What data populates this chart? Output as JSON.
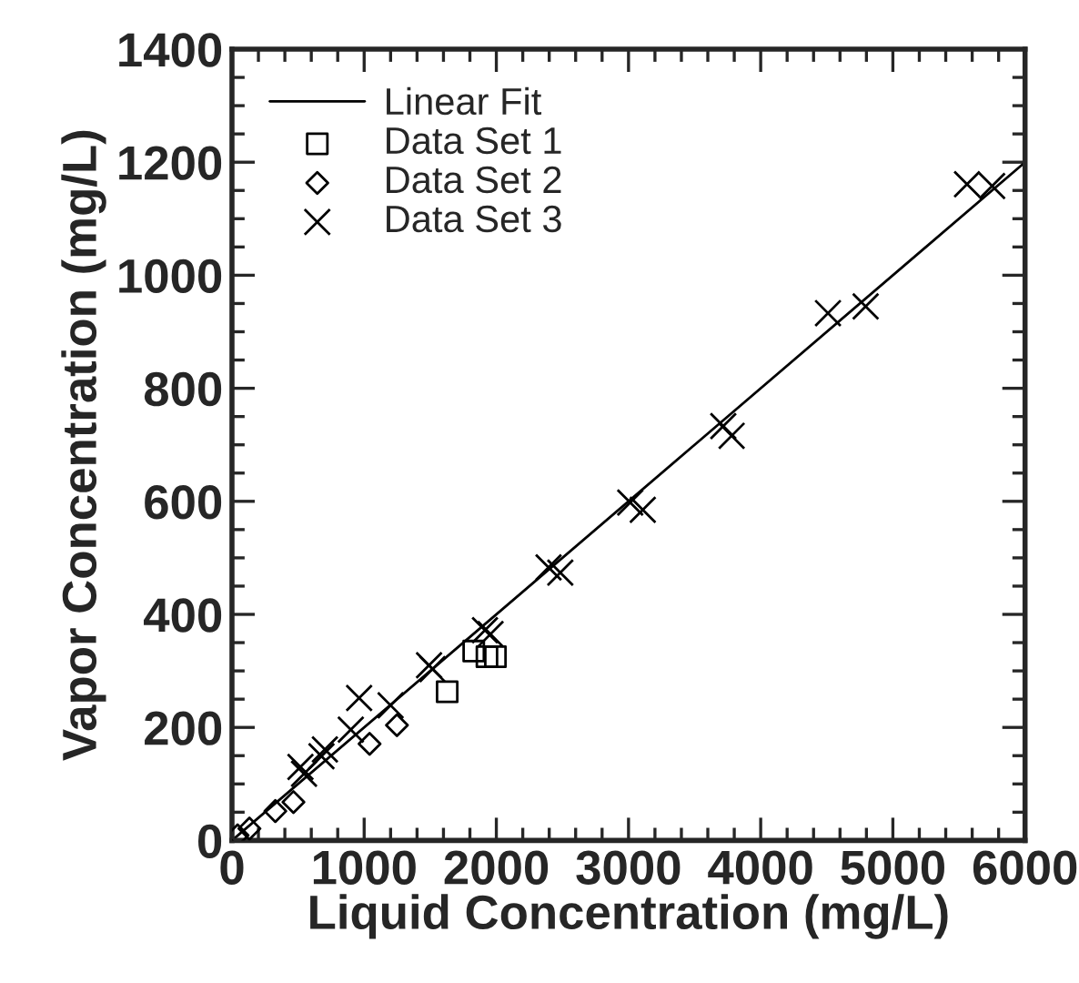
{
  "chart_data": {
    "type": "scatter",
    "xlabel": "Liquid Concentration (mg/L)",
    "ylabel": "Vapor Concentration (mg/L)",
    "xlim": [
      0,
      6000
    ],
    "ylim": [
      0,
      1400
    ],
    "xticks": [
      0,
      1000,
      2000,
      3000,
      4000,
      5000,
      6000
    ],
    "yticks": [
      0,
      200,
      400,
      600,
      800,
      1000,
      1200,
      1400
    ],
    "grid": false,
    "legend": "top left",
    "series": [
      {
        "name": "Linear Fit",
        "type": "line",
        "color": "#000000",
        "marker": "none",
        "line_style": "solid",
        "x": [
          0,
          6000
        ],
        "values": [
          0,
          1200
        ]
      },
      {
        "name": "Data Set 1",
        "color": "#000000",
        "marker": "square",
        "x": [
          1628,
          1829,
          1929,
          1993
        ],
        "values": [
          263,
          335,
          325,
          325
        ]
      },
      {
        "name": "Data Set 2",
        "color": "#000000",
        "marker": "diamond",
        "x": [
          42,
          132,
          328,
          465,
          1041,
          1248
        ],
        "values": [
          9,
          21,
          52,
          68,
          171,
          204
        ]
      },
      {
        "name": "Data Set 3",
        "color": "#000000",
        "marker": "cross",
        "x": [
          518,
          545,
          677,
          703,
          899,
          962,
          1200,
          1491,
          1517,
          1914,
          1956,
          2395,
          2484,
          3013,
          3108,
          3717,
          3780,
          4509,
          4794,
          5561,
          5751
        ],
        "values": [
          130,
          118,
          149,
          161,
          196,
          252,
          239,
          310,
          303,
          372,
          365,
          483,
          474,
          598,
          585,
          733,
          716,
          933,
          945,
          1161,
          1158
        ]
      }
    ]
  }
}
